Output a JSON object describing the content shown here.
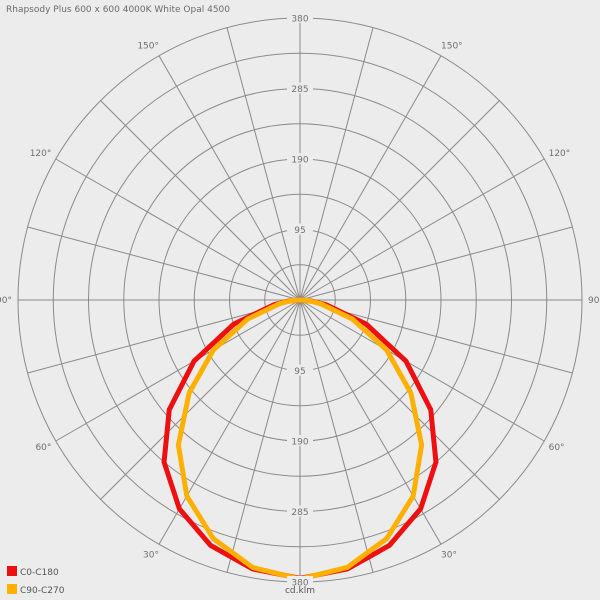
{
  "chart_data": {
    "type": "polar",
    "title": "Rhapsody Plus 600 x 600 4000K White Opal 4500",
    "unit": "cd.klm",
    "radial_ticks": [
      95,
      190,
      285,
      380
    ],
    "r_max": 380,
    "angle_labels": [
      "150°",
      "150°",
      "120°",
      "120°",
      "90°",
      "90°",
      "60°",
      "60°",
      "30°",
      "30°"
    ],
    "legend_position": "bottom-left",
    "grid": true,
    "series": [
      {
        "name": "C0-C180",
        "color": "#ee1010",
        "gamma": [
          0,
          10,
          20,
          30,
          40,
          50,
          60,
          70,
          80,
          85,
          90
        ],
        "intensity": [
          375,
          368,
          352,
          325,
          285,
          230,
          165,
          95,
          35,
          15,
          0
        ]
      },
      {
        "name": "C90-C270",
        "color": "#ffb000",
        "gamma": [
          0,
          10,
          20,
          30,
          40,
          50,
          60,
          70,
          80,
          85,
          90
        ],
        "intensity": [
          376,
          366,
          342,
          305,
          255,
          195,
          135,
          75,
          28,
          12,
          0
        ]
      }
    ]
  }
}
